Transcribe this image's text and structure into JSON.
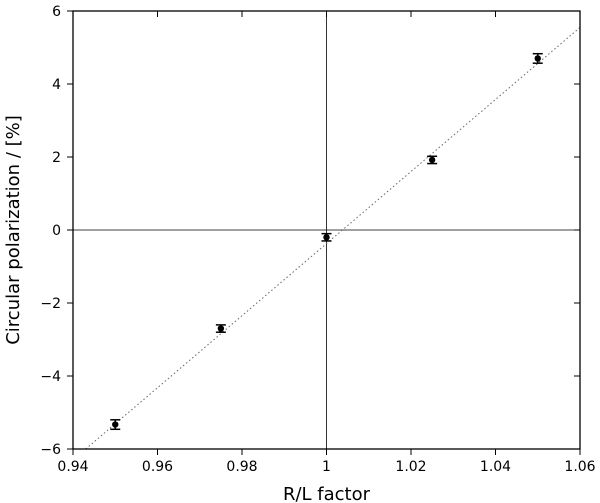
{
  "chart_data": {
    "type": "scatter",
    "title": "",
    "xlabel": "R/L factor",
    "ylabel": "Circular polarization / [%]",
    "xlim": [
      0.94,
      1.06
    ],
    "ylim": [
      -6,
      6
    ],
    "x_ticks": [
      0.94,
      0.96,
      0.98,
      1.0,
      1.02,
      1.04,
      1.06
    ],
    "x_tick_labels": [
      "0.94",
      "0.96",
      "0.98",
      "1",
      "1.02",
      "1.04",
      "1.06"
    ],
    "y_ticks": [
      -6,
      -4,
      -2,
      0,
      2,
      4,
      6
    ],
    "y_tick_labels": [
      "−6",
      "−4",
      "−2",
      "0",
      "2",
      "4",
      "6"
    ],
    "grid": false,
    "reference_lines": {
      "x": 1.0,
      "y": 0
    },
    "points": [
      {
        "x": 0.95,
        "y": -5.33,
        "yerr": 0.13
      },
      {
        "x": 0.975,
        "y": -2.7,
        "yerr": 0.1
      },
      {
        "x": 1.0,
        "y": -0.2,
        "yerr": 0.1
      },
      {
        "x": 1.025,
        "y": 1.92,
        "yerr": 0.1
      },
      {
        "x": 1.05,
        "y": 4.7,
        "yerr": 0.13
      }
    ],
    "fit_line": {
      "style": "dotted",
      "from": [
        0.943,
        -6.0
      ],
      "to": [
        1.06,
        5.55
      ]
    },
    "colors": {
      "points": "#000000",
      "fit_line": "#666666",
      "axes": "#000000"
    }
  }
}
